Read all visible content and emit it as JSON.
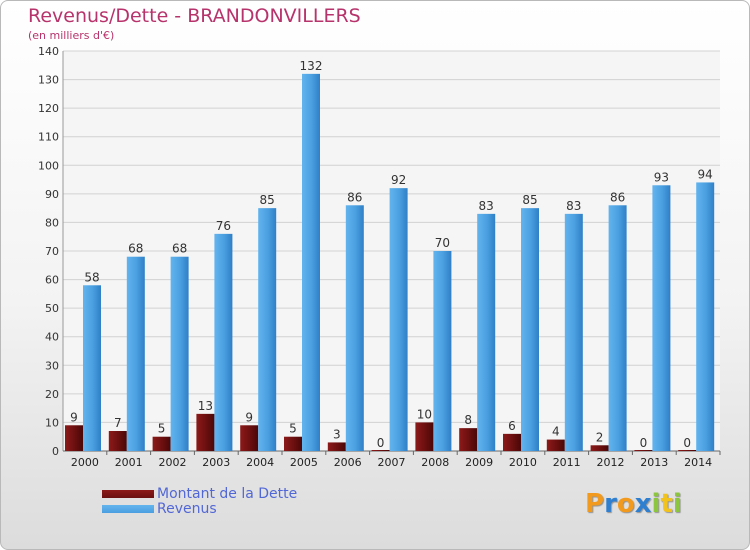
{
  "chart_data": {
    "type": "bar",
    "title": "Revenus/Dette - BRANDONVILLERS",
    "subtitle": "(en milliers d'€)",
    "categories": [
      "2000",
      "2001",
      "2002",
      "2003",
      "2004",
      "2005",
      "2006",
      "2007",
      "2008",
      "2009",
      "2010",
      "2011",
      "2012",
      "2013",
      "2014"
    ],
    "series": [
      {
        "name": "Montant de la Dette",
        "color": "#6b0f0f",
        "values": [
          9,
          7,
          5,
          13,
          9,
          5,
          3,
          0,
          10,
          8,
          6,
          4,
          2,
          0,
          0
        ]
      },
      {
        "name": "Revenus",
        "color": "#4a9fe0",
        "values": [
          58,
          68,
          68,
          76,
          85,
          132,
          86,
          92,
          70,
          83,
          85,
          83,
          86,
          93,
          94
        ]
      }
    ],
    "ylim": [
      0,
      140
    ],
    "yticks": [
      0,
      10,
      20,
      30,
      40,
      50,
      60,
      70,
      80,
      90,
      100,
      110,
      120,
      130,
      140
    ],
    "grid": true,
    "legend_position": "bottom-left"
  },
  "logo": {
    "letters": [
      "P",
      "r",
      "o",
      "x",
      "i",
      "t",
      "i"
    ],
    "colors": [
      "#f29a1d",
      "#2f7fd0",
      "#f29a1d",
      "#2f7fd0",
      "#8cc63f",
      "#f2c21d",
      "#8cc63f"
    ]
  }
}
